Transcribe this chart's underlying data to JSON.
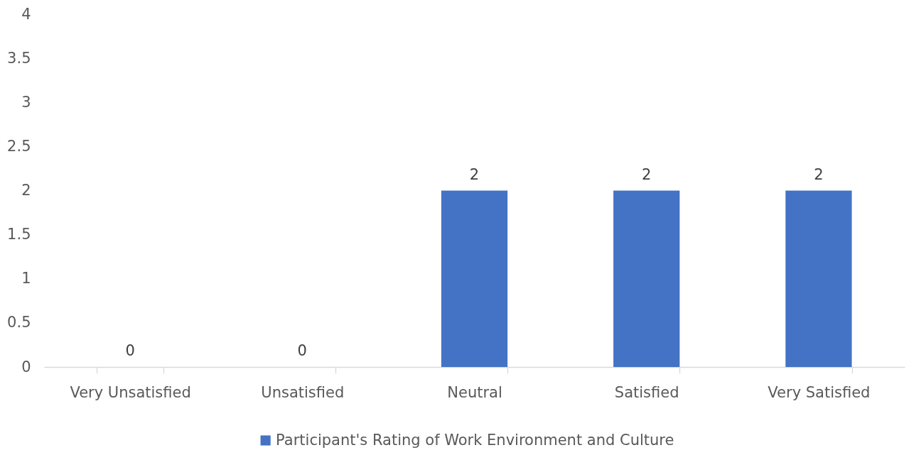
{
  "chart_data": {
    "type": "bar",
    "categories": [
      "Very Unsatisfied",
      "Unsatisfied",
      "Neutral",
      "Satisfied",
      "Very Satisfied"
    ],
    "series": [
      {
        "name": "Participant's Rating of Work Environment and Culture",
        "color": "#4472c4",
        "values": [
          0,
          0,
          2,
          2,
          2
        ]
      }
    ],
    "ylim": [
      0,
      4
    ],
    "yticks": [
      0,
      0.5,
      1,
      1.5,
      2,
      2.5,
      3,
      3.5,
      4
    ],
    "grid": false,
    "legend": "bottom",
    "data_labels": true
  }
}
